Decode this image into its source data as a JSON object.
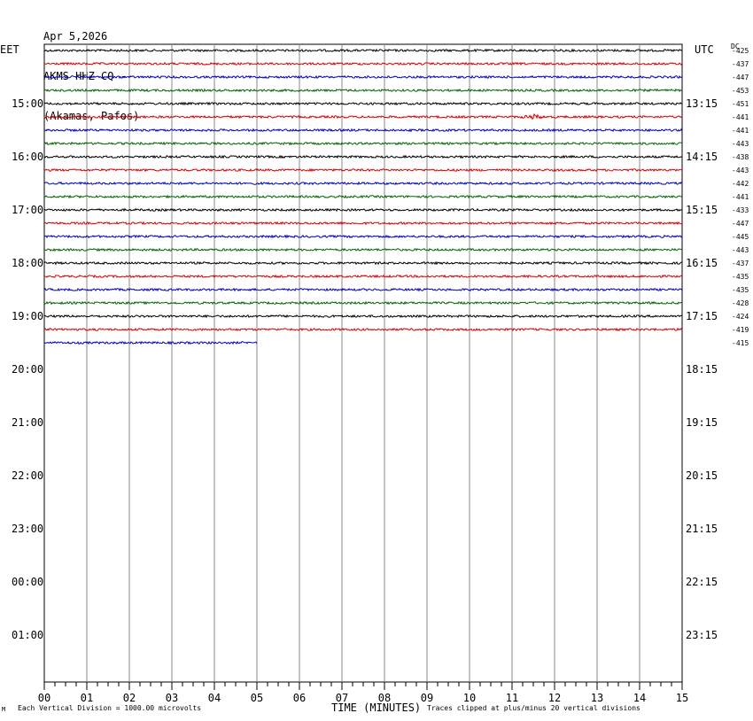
{
  "header": {
    "date": "Apr 5,2026",
    "station": "AKMS HHZ CQ --",
    "location": "(Akamas, Pafos)"
  },
  "left_tz": "EET",
  "right_tz": "UTC",
  "dc_label": "DC",
  "footer": {
    "left_mark": "M",
    "scale_note": "Each Vertical Division = 1000.00 microvolts",
    "xlabel": "TIME (MINUTES)",
    "clip_note": "Traces clipped at plus/minus 20 vertical divisions"
  },
  "colors": {
    "trace_cycle": [
      "#000000",
      "#d40000",
      "#0000b4",
      "#006400"
    ],
    "grid": "#888888"
  },
  "chart_data": {
    "type": "line",
    "title": "Apr 5,2026 AKMS HHZ CQ -- (Akamas, Pafos)",
    "xlabel": "TIME (MINUTES)",
    "ylabel": "",
    "xlim": [
      0,
      15
    ],
    "x_ticks": [
      "00",
      "01",
      "02",
      "03",
      "04",
      "05",
      "06",
      "07",
      "08",
      "09",
      "10",
      "11",
      "12",
      "13",
      "14",
      "15"
    ],
    "left_hour_labels": [
      "15:00",
      "16:00",
      "17:00",
      "18:00",
      "19:00",
      "20:00",
      "21:00",
      "22:00",
      "23:00",
      "00:00",
      "01:00"
    ],
    "right_hour_labels": [
      "13:15",
      "14:15",
      "15:15",
      "16:15",
      "17:15",
      "18:15",
      "19:15",
      "20:15",
      "21:15",
      "22:15",
      "23:15"
    ],
    "dc_offsets": [
      "-425",
      "-437",
      "-447",
      "-453",
      "-451",
      "-441",
      "-441",
      "-443",
      "-438",
      "-443",
      "-442",
      "-441",
      "-433",
      "-447",
      "-445",
      "-443",
      "-437",
      "-435",
      "-435",
      "-428",
      "-424",
      "-419",
      "-415"
    ],
    "traces_per_hour": 4,
    "minutes_per_trace": 15,
    "trace_count": 23,
    "last_trace_minutes": 5,
    "event": {
      "trace_index": 5,
      "minute": 11.5
    }
  }
}
